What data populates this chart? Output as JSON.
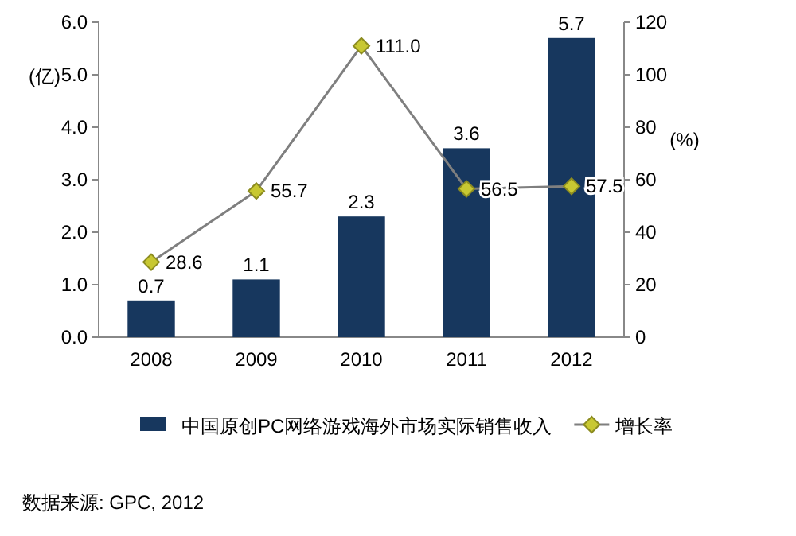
{
  "chart_data": {
    "type": "bar",
    "categories": [
      "2008",
      "2009",
      "2010",
      "2011",
      "2012"
    ],
    "series": [
      {
        "name": "中国原创PC网络游戏海外市场实际销售收入",
        "color": "#17375e",
        "values": [
          0.7,
          1.1,
          2.3,
          3.6,
          5.7
        ],
        "value_labels": [
          "0.7",
          "1.1",
          "2.3",
          "3.6",
          "5.7"
        ]
      },
      {
        "name": "增长率",
        "type": "line",
        "axis": "y2",
        "color": "#c8c832",
        "marker": "diamond",
        "values": [
          28.6,
          55.7,
          111.0,
          56.5,
          57.5
        ],
        "value_labels": [
          "28.6",
          "55.7",
          "111.0",
          "56.5",
          "57.5"
        ]
      }
    ],
    "ylim": [
      0,
      6
    ],
    "yticks": [
      {
        "value": 0,
        "label": "0.0"
      },
      {
        "value": 1,
        "label": "1.0"
      },
      {
        "value": 2,
        "label": "2.0"
      },
      {
        "value": 3,
        "label": "3.0"
      },
      {
        "value": 4,
        "label": "4.0"
      },
      {
        "value": 5,
        "label": "5.0"
      },
      {
        "value": 6,
        "label": "6.0"
      }
    ],
    "y2lim": [
      0,
      120
    ],
    "y2ticks": [
      0,
      20,
      40,
      60,
      80,
      100,
      120
    ],
    "ylabel": "(亿)",
    "y2label": "(%)",
    "legend": "bottom",
    "grid": false,
    "annotations": [
      "数据来源: GPC, 2012"
    ]
  }
}
